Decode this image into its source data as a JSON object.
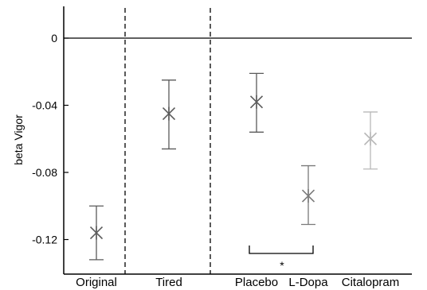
{
  "chart_data": {
    "type": "scatter",
    "title": "",
    "xlabel": "",
    "ylabel": "beta Vigor",
    "ylim": [
      -0.14,
      0.02
    ],
    "yticks": [
      0,
      -0.04,
      -0.08,
      -0.12
    ],
    "ytick_labels": [
      "0",
      "-0.04",
      "-0.08",
      "-0.12"
    ],
    "reference_line": 0,
    "categories": [
      "Original",
      "Tired",
      "Placebo",
      "L-Dopa",
      "Citalopram"
    ],
    "values": [
      -0.116,
      -0.045,
      -0.038,
      -0.094,
      -0.06
    ],
    "error_low": [
      -0.132,
      -0.066,
      -0.056,
      -0.111,
      -0.078
    ],
    "error_high": [
      -0.1,
      -0.025,
      -0.021,
      -0.076,
      -0.044
    ],
    "colors": [
      "#5a5a5a",
      "#5a5a5a",
      "#5a5a5a",
      "#7a7a7a",
      "#b8b8b8"
    ],
    "group_separators_after": [
      "Original",
      "Tired"
    ],
    "significance": {
      "between": [
        "Placebo",
        "L-Dopa"
      ],
      "label": "*"
    }
  }
}
